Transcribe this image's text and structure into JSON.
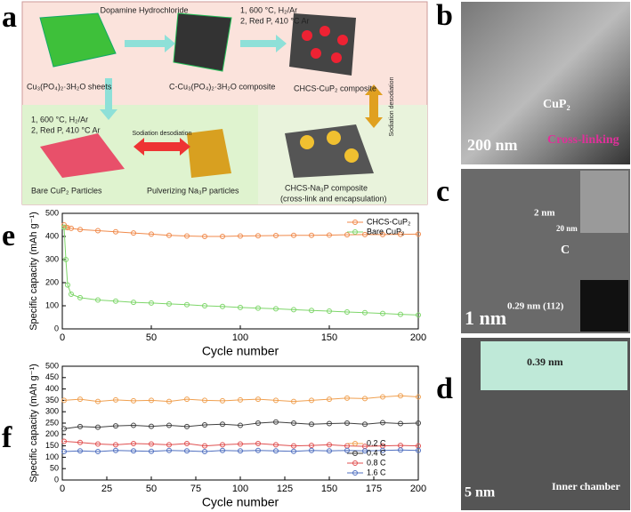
{
  "panels": {
    "a": "a",
    "b": "b",
    "c": "c",
    "d": "d",
    "e": "e",
    "f": "f"
  },
  "diagram_a": {
    "reagent": "Dopamine Hydrochloride",
    "start": "Cu₃(PO₄)₂·3H₂O sheets",
    "middle": "C-Cu₃(PO₄)₂·3H₂O composite",
    "step_top_1": "1, 600 °C, H₂/Ar",
    "step_top_2": "2, Red P, 410 °C Ar",
    "product": "CHCS-CuP₂ composite",
    "step_left_1": "1, 600 °C, H₂/Ar",
    "step_left_2": "2, Red P, 410 °C Ar",
    "sodiation_left": "Sodiation desodiation",
    "sodiation_right": "Sodiation desodiation",
    "bare": "Bare CuP₂ Particles",
    "pulverizing": "Pulverizing Na₃P particles",
    "na3p": "CHCS-Na₃P composite",
    "na3p_note": "(cross-link and encapsulation)"
  },
  "micrograph_b": {
    "scale": "200 nm",
    "label": "CuP₂",
    "crosslink": "Cross-linking"
  },
  "micrograph_c": {
    "layer": "2 nm",
    "inset_scale": "20 nm",
    "carbon": "C",
    "spacing": "0.29 nm (112)",
    "scale": "1 nm"
  },
  "micrograph_d": {
    "spacing": "0.39 nm",
    "scale": "5 nm",
    "chamber": "Inner chamber"
  },
  "chart_data": [
    {
      "type": "line",
      "xlabel": "Cycle number",
      "ylabel": "Specific capacity (mAh g⁻¹)",
      "xlim": [
        0,
        200
      ],
      "ylim": [
        0,
        500
      ],
      "xticks": [
        0,
        50,
        100,
        150,
        200
      ],
      "yticks": [
        0,
        100,
        200,
        300,
        400,
        500
      ],
      "legend": "upper right",
      "x": [
        1,
        2,
        3,
        5,
        10,
        20,
        30,
        40,
        50,
        60,
        70,
        80,
        90,
        100,
        110,
        120,
        130,
        140,
        150,
        160,
        170,
        180,
        190,
        200
      ],
      "series": [
        {
          "name": "CHCS-CuP₂",
          "color": "#f08a4b",
          "values": [
            450,
            440,
            438,
            435,
            430,
            425,
            420,
            415,
            410,
            405,
            402,
            400,
            400,
            402,
            403,
            404,
            405,
            405,
            406,
            407,
            408,
            408,
            409,
            410
          ]
        },
        {
          "name": "Bare CuP₂",
          "color": "#7ed66a",
          "values": [
            440,
            300,
            190,
            150,
            135,
            125,
            120,
            115,
            112,
            108,
            105,
            100,
            97,
            93,
            90,
            87,
            83,
            80,
            77,
            73,
            70,
            67,
            63,
            60
          ]
        }
      ]
    },
    {
      "type": "line",
      "xlabel": "Cycle number",
      "ylabel": "Specific capacity (mAh g⁻¹)",
      "xlim": [
        0,
        200
      ],
      "ylim": [
        0,
        500
      ],
      "xticks": [
        0,
        25,
        50,
        75,
        100,
        125,
        150,
        175,
        200
      ],
      "yticks": [
        0,
        50,
        100,
        150,
        200,
        250,
        300,
        350,
        400,
        450,
        500
      ],
      "legend": "lower right",
      "x": [
        1,
        10,
        20,
        30,
        40,
        50,
        60,
        70,
        80,
        90,
        100,
        110,
        120,
        130,
        140,
        150,
        160,
        170,
        180,
        190,
        200
      ],
      "series": [
        {
          "name": "0.2 C",
          "color": "#f0a050",
          "values": [
            350,
            355,
            345,
            352,
            348,
            350,
            345,
            355,
            350,
            348,
            352,
            355,
            350,
            345,
            350,
            355,
            360,
            358,
            365,
            370,
            365
          ]
        },
        {
          "name": "0.4 C",
          "color": "#404040",
          "values": [
            225,
            235,
            232,
            238,
            240,
            236,
            240,
            235,
            242,
            245,
            240,
            250,
            255,
            250,
            245,
            248,
            250,
            245,
            252,
            248,
            250
          ]
        },
        {
          "name": "0.8 C",
          "color": "#e05050",
          "values": [
            170,
            165,
            158,
            155,
            160,
            158,
            155,
            160,
            150,
            155,
            158,
            160,
            155,
            150,
            152,
            155,
            150,
            148,
            150,
            152,
            150
          ]
        },
        {
          "name": "1.6 C",
          "color": "#5070c0",
          "values": [
            125,
            128,
            125,
            130,
            128,
            126,
            130,
            128,
            125,
            130,
            128,
            130,
            128,
            126,
            130,
            128,
            130,
            128,
            130,
            132,
            130
          ]
        }
      ]
    }
  ]
}
